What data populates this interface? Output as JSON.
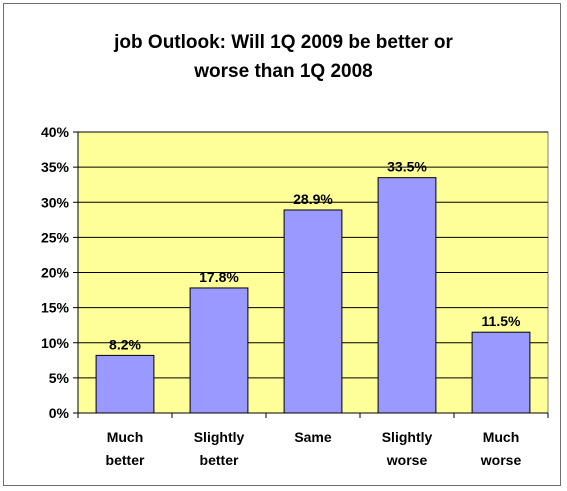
{
  "chart_data": {
    "type": "bar",
    "title_lines": [
      "job Outlook: Will 1Q 2009 be better or",
      "worse than 1Q 2008"
    ],
    "categories": [
      [
        "Much",
        "better"
      ],
      [
        "Slightly",
        "better"
      ],
      [
        "Same"
      ],
      [
        "Slightly",
        "worse"
      ],
      [
        "Much",
        "worse"
      ]
    ],
    "values": [
      8.2,
      17.8,
      28.9,
      33.5,
      11.5
    ],
    "data_labels": [
      "8.2%",
      "17.8%",
      "28.9%",
      "33.5%",
      "11.5%"
    ],
    "y_ticks": [
      "0%",
      "5%",
      "10%",
      "15%",
      "20%",
      "25%",
      "30%",
      "35%",
      "40%"
    ],
    "ylim": [
      0,
      40
    ],
    "grid": true,
    "colors": {
      "plot_background": "#ffff99",
      "bar_fill": "#9999ff",
      "bar_stroke": "#000000",
      "grid": "#000000"
    }
  }
}
